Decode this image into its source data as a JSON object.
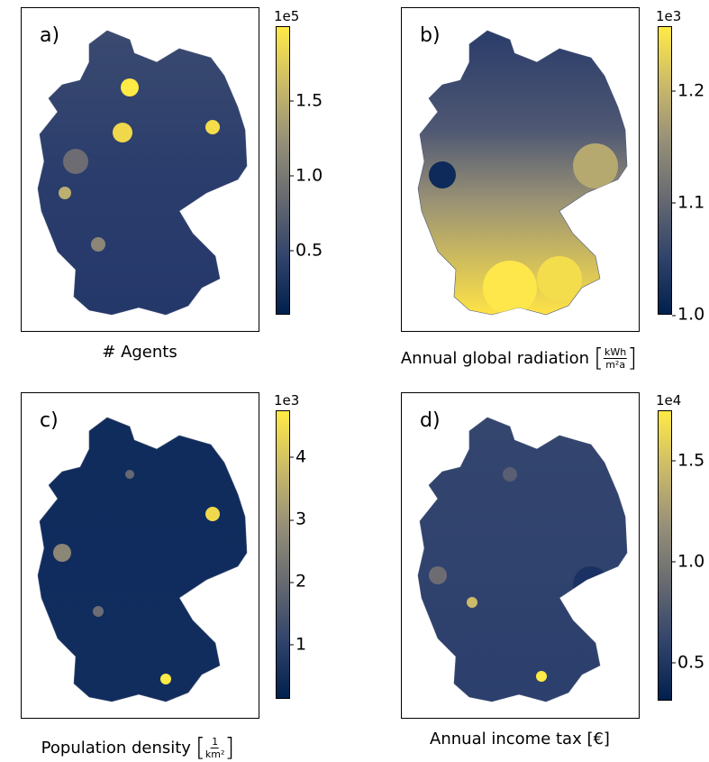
{
  "colormap": [
    "#00204d",
    "#31446b",
    "#666970",
    "#958f78",
    "#cbba69",
    "#ffea46"
  ],
  "chart_data": [
    {
      "type": "heatmap",
      "subtype": "choropleth",
      "letter": "a)",
      "caption": "# Agents",
      "colorbar": {
        "exponent": "1e5",
        "range": [
          0.07,
          2.0
        ],
        "ticks": [
          {
            "v": 0.5,
            "label": "0.5"
          },
          {
            "v": 1.0,
            "label": "1.0"
          },
          {
            "v": 1.5,
            "label": "1.5"
          }
        ]
      }
    },
    {
      "type": "heatmap",
      "subtype": "choropleth",
      "letter": "b)",
      "caption": "Annual global radiation",
      "unit_num": "kWh",
      "unit_den": "m²a",
      "colorbar": {
        "exponent": "1e3",
        "range": [
          1.0,
          1.258
        ],
        "ticks": [
          {
            "v": 1.0,
            "label": "1.0"
          },
          {
            "v": 1.1,
            "label": "1.1"
          },
          {
            "v": 1.2,
            "label": "1.2"
          }
        ]
      }
    },
    {
      "type": "heatmap",
      "subtype": "choropleth",
      "letter": "c)",
      "caption": "Population density",
      "unit_num": "1",
      "unit_den": "km²",
      "colorbar": {
        "exponent": "1e3",
        "range": [
          0.13,
          4.75
        ],
        "ticks": [
          {
            "v": 1,
            "label": "1"
          },
          {
            "v": 2,
            "label": "2"
          },
          {
            "v": 3,
            "label": "3"
          },
          {
            "v": 4,
            "label": "4"
          }
        ]
      }
    },
    {
      "type": "heatmap",
      "subtype": "choropleth",
      "letter": "d)",
      "caption": "Annual income tax [€]",
      "colorbar": {
        "exponent": "1e4",
        "range": [
          0.31,
          1.75
        ],
        "ticks": [
          {
            "v": 0.5,
            "label": "0.5"
          },
          {
            "v": 1.0,
            "label": "1.0"
          },
          {
            "v": 1.5,
            "label": "1.5"
          }
        ]
      }
    }
  ]
}
